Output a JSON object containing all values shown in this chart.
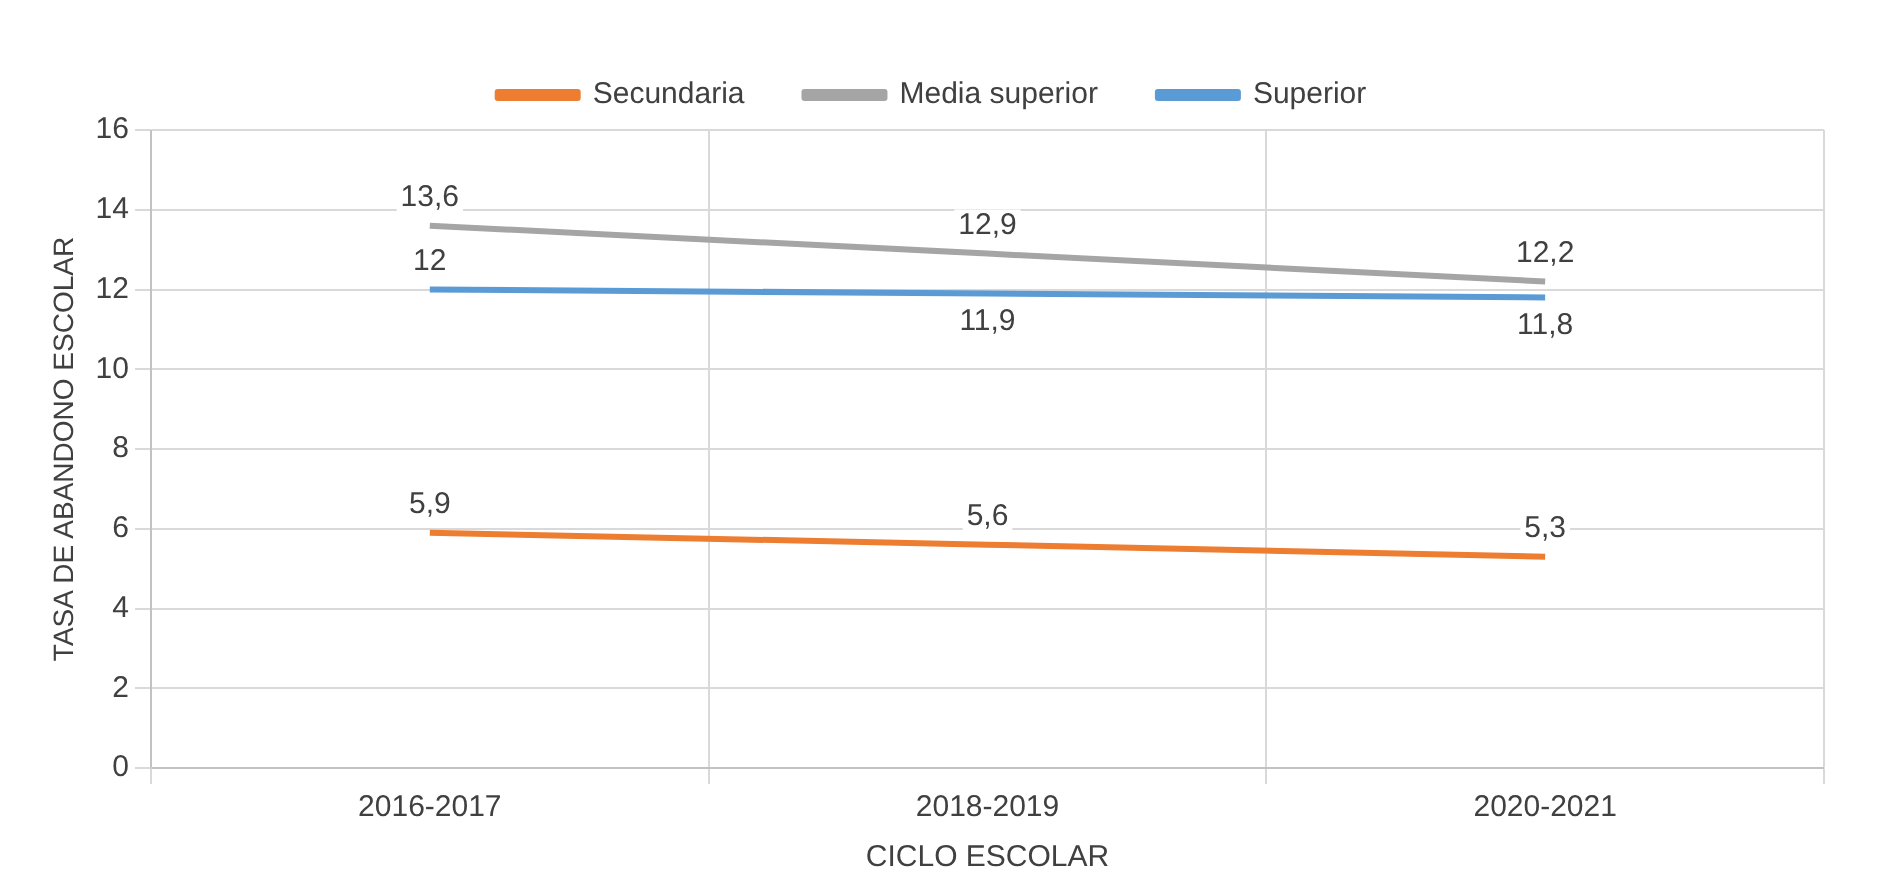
{
  "chart_data": {
    "type": "line",
    "xlabel": "CICLO ESCOLAR",
    "ylabel": "TASA DE ABANDONO ESCOLAR",
    "categories": [
      "2016-2017",
      "2018-2019",
      "2020-2021"
    ],
    "series": [
      {
        "name": "Secundaria",
        "color": "#ed7d31",
        "values": [
          5.9,
          5.6,
          5.3
        ],
        "value_labels": [
          "5,9",
          "5,6",
          "5,3"
        ]
      },
      {
        "name": "Media superior",
        "color": "#a5a5a5",
        "values": [
          13.6,
          12.9,
          12.2
        ],
        "value_labels": [
          "13,6",
          "12,9",
          "12,2"
        ]
      },
      {
        "name": "Superior",
        "color": "#5b9bd5",
        "values": [
          12,
          11.9,
          11.8
        ],
        "value_labels": [
          "12",
          "11,9",
          "11,8"
        ]
      }
    ],
    "ylim": [
      0,
      16
    ],
    "yticks": [
      0,
      2,
      4,
      6,
      8,
      10,
      12,
      14,
      16
    ],
    "grid": true,
    "legend": "top",
    "marker": "none",
    "line_style": "solid"
  }
}
